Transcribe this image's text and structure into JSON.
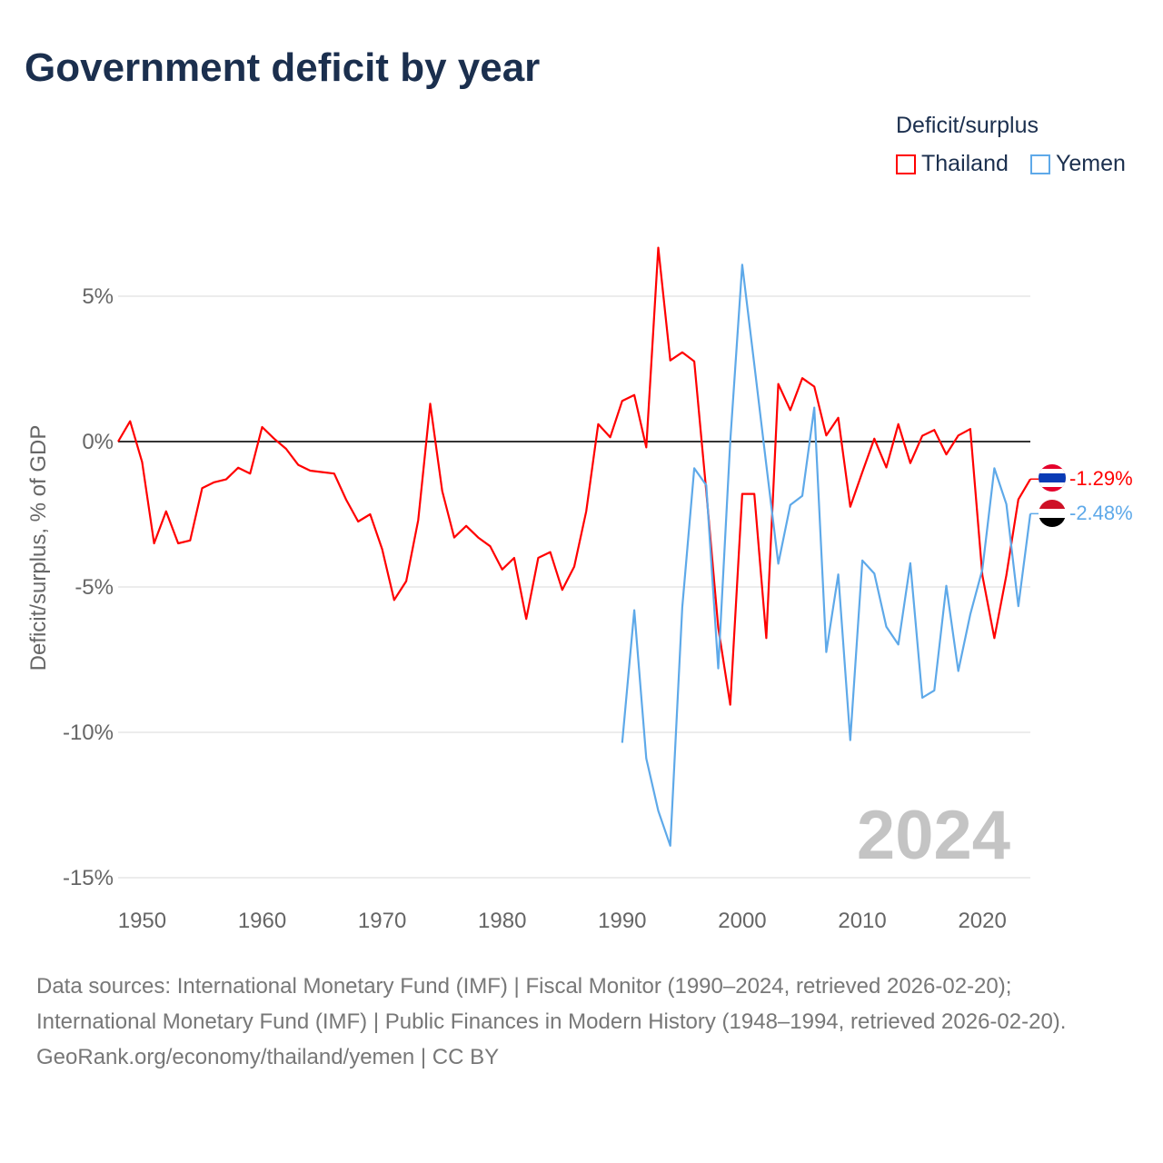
{
  "title": "Government deficit by year",
  "legend": {
    "title": "Deficit/surplus",
    "items": [
      {
        "label": "Thailand",
        "color": "#ff0000"
      },
      {
        "label": "Yemen",
        "color": "#5ea9e9"
      }
    ]
  },
  "footer": {
    "sources": "Data sources: International Monetary Fund (IMF) | Fiscal Monitor (1990–2024, retrieved 2026-02-20); International Monetary Fund (IMF) | Public Finances in Modern History (1948–1994, retrieved 2026-02-20).",
    "credit": "GeoRank.org/economy/thailand/yemen | CC BY"
  },
  "chart_data": {
    "type": "line",
    "title": "Government deficit by year",
    "ylabel": "Deficit/surplus, % of GDP",
    "xlabel": "",
    "xlim": [
      1948,
      2024
    ],
    "ylim": [
      -15,
      7
    ],
    "xticks": [
      1950,
      1960,
      1970,
      1980,
      1990,
      2000,
      2010,
      2020
    ],
    "xtick_labels": [
      "1950",
      "1960",
      "1970",
      "1980",
      "1990",
      "2000",
      "2010",
      "2020"
    ],
    "yticks": [
      5,
      0,
      -5,
      -10,
      -15
    ],
    "ytick_labels": [
      "5%",
      "0%",
      "-5%",
      "-10%",
      "-15%"
    ],
    "grid": true,
    "year_watermark": "2024",
    "end_labels": [
      "-1.29%",
      "-2.48%"
    ],
    "series": [
      {
        "name": "Thailand",
        "color": "#ff0000",
        "x": [
          1948,
          1949,
          1950,
          1951,
          1952,
          1953,
          1954,
          1955,
          1956,
          1957,
          1958,
          1959,
          1960,
          1961,
          1962,
          1963,
          1964,
          1965,
          1966,
          1967,
          1968,
          1969,
          1970,
          1971,
          1972,
          1973,
          1974,
          1975,
          1976,
          1977,
          1978,
          1979,
          1980,
          1981,
          1982,
          1983,
          1984,
          1985,
          1986,
          1987,
          1988,
          1989,
          1990,
          1991,
          1992,
          1993,
          1994,
          1995,
          1996,
          1997,
          1998,
          1999,
          2000,
          2001,
          2002,
          2003,
          2004,
          2005,
          2006,
          2007,
          2008,
          2009,
          2010,
          2011,
          2012,
          2013,
          2014,
          2015,
          2016,
          2017,
          2018,
          2019,
          2020,
          2021,
          2022,
          2023,
          2024
        ],
        "values": [
          0,
          0.7,
          -0.7,
          -3.5,
          -2.4,
          -3.5,
          -3.4,
          -1.6,
          -1.4,
          -1.3,
          -0.9,
          -1.1,
          0.5,
          0.1,
          -0.25,
          -0.8,
          -1.0,
          -1.05,
          -1.1,
          -2.0,
          -2.75,
          -2.5,
          -3.7,
          -5.45,
          -4.8,
          -2.7,
          1.3,
          -1.7,
          -3.3,
          -2.9,
          -3.3,
          -3.6,
          -4.4,
          -4.0,
          -6.1,
          -4.0,
          -3.8,
          -5.1,
          -4.3,
          -2.4,
          0.6,
          0.15,
          1.4,
          1.6,
          -0.2,
          6.67,
          2.79,
          3.07,
          2.76,
          -1.7,
          -6.4,
          -9.05,
          -1.8,
          -1.8,
          -6.76,
          1.98,
          1.08,
          2.18,
          1.89,
          0.21,
          0.82,
          -2.24,
          -1.05,
          0.1,
          -0.89,
          0.6,
          -0.74,
          0.2,
          0.4,
          -0.44,
          0.21,
          0.43,
          -4.6,
          -6.76,
          -4.6,
          -1.99,
          -1.29
        ]
      },
      {
        "name": "Yemen",
        "color": "#5ea9e9",
        "x": [
          1990,
          1991,
          1992,
          1993,
          1994,
          1995,
          1996,
          1997,
          1998,
          1999,
          2000,
          2001,
          2002,
          2003,
          2004,
          2005,
          2006,
          2007,
          2008,
          2009,
          2010,
          2011,
          2012,
          2013,
          2014,
          2015,
          2016,
          2017,
          2018,
          2019,
          2020,
          2021,
          2022,
          2023,
          2024
        ],
        "values": [
          -10.36,
          -5.8,
          -10.9,
          -12.7,
          -13.9,
          -5.7,
          -0.92,
          -1.5,
          -7.8,
          0,
          6.08,
          2.65,
          -0.8,
          -4.2,
          -2.18,
          -1.87,
          1.17,
          -7.24,
          -4.57,
          -10.27,
          -4.09,
          -4.54,
          -6.37,
          -6.98,
          -4.18,
          -8.81,
          -8.56,
          -4.96,
          -7.89,
          -5.94,
          -4.4,
          -0.92,
          -2.15,
          -5.66,
          -2.48
        ]
      }
    ]
  }
}
